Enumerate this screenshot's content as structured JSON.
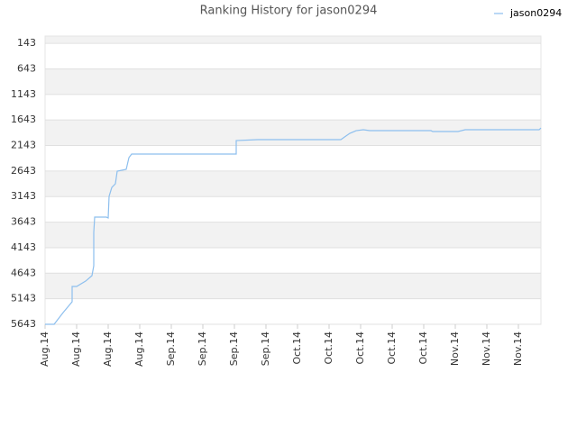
{
  "chart_data": {
    "type": "line",
    "title": "Ranking History for jason0294",
    "series": [
      {
        "name": "jason0294",
        "color": "#8dbfee",
        "x": [
          0,
          2,
          4,
          6,
          6,
          7,
          9,
          10.4,
          10.8,
          10.8,
          11,
          13.6,
          14,
          14.2,
          14.8,
          15.6,
          16,
          18,
          18.6,
          19.2,
          42.4,
          42.4,
          47.2,
          65.6,
          67.6,
          69,
          70.6,
          72,
          85.6,
          86,
          91.6,
          93.2,
          109.6,
          110
        ],
        "values": [
          5643,
          5643,
          5414,
          5202,
          4902,
          4902,
          4797,
          4691,
          4497,
          3844,
          3545,
          3545,
          3562,
          3139,
          2963,
          2892,
          2645,
          2610,
          2381,
          2310,
          2310,
          2046,
          2028,
          2028,
          1905,
          1852,
          1834,
          1852,
          1852,
          1869,
          1869,
          1834,
          1834,
          1799
        ]
      }
    ],
    "ylim": [
      5643,
      0
    ],
    "yticks": [
      143,
      643,
      1143,
      1643,
      2143,
      2643,
      3143,
      3643,
      4143,
      4643,
      5143,
      5643
    ],
    "xlim": [
      0,
      110
    ],
    "xticks": [
      {
        "value": 0,
        "label": "Aug.14"
      },
      {
        "value": 7,
        "label": "Aug.14"
      },
      {
        "value": 14,
        "label": "Aug.14"
      },
      {
        "value": 21,
        "label": "Aug.14"
      },
      {
        "value": 28,
        "label": "Sep.14"
      },
      {
        "value": 35,
        "label": "Sep.14"
      },
      {
        "value": 42,
        "label": "Sep.14"
      },
      {
        "value": 49,
        "label": "Sep.14"
      },
      {
        "value": 56,
        "label": "Oct.14"
      },
      {
        "value": 63,
        "label": "Oct.14"
      },
      {
        "value": 70,
        "label": "Oct.14"
      },
      {
        "value": 77,
        "label": "Oct.14"
      },
      {
        "value": 84,
        "label": "Oct.14"
      },
      {
        "value": 91,
        "label": "Nov.14"
      },
      {
        "value": 98,
        "label": "Nov.14"
      },
      {
        "value": 105,
        "label": "Nov.14"
      }
    ],
    "grid": true,
    "legend": "top-right"
  }
}
